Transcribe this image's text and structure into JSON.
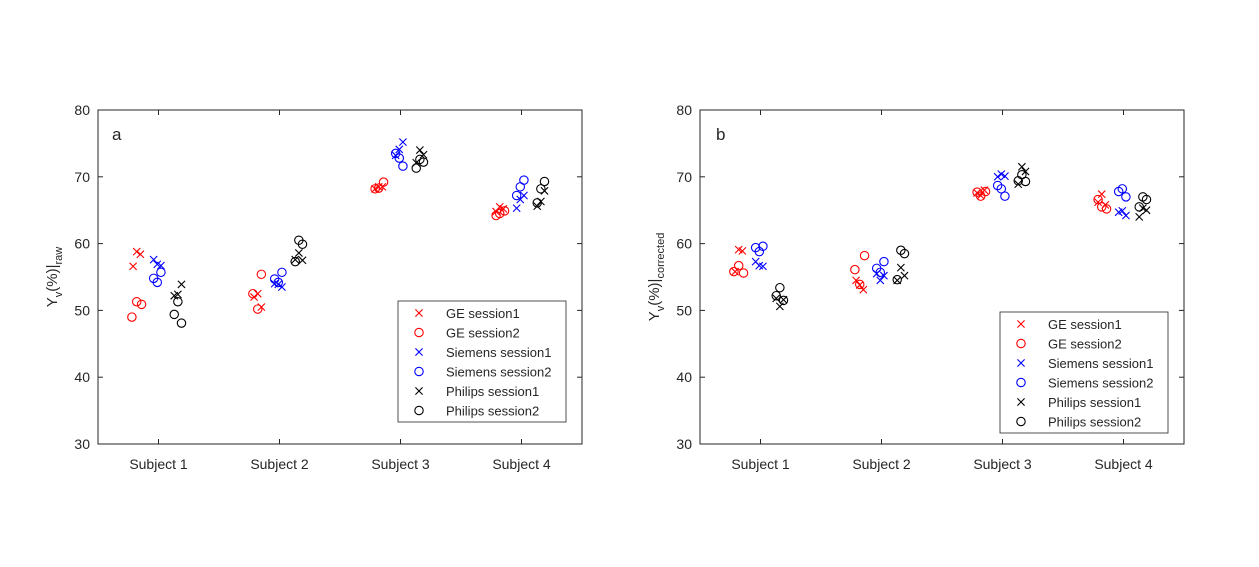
{
  "series_styles": [
    {
      "name": "GE session1",
      "marker": "x",
      "color": "#ff0000"
    },
    {
      "name": "GE session2",
      "marker": "o",
      "color": "#ff0000"
    },
    {
      "name": "Siemens session1",
      "marker": "x",
      "color": "#0000ff"
    },
    {
      "name": "Siemens session2",
      "marker": "o",
      "color": "#0000ff"
    },
    {
      "name": "Philips session1",
      "marker": "x",
      "color": "#000000"
    },
    {
      "name": "Philips session2",
      "marker": "o",
      "color": "#000000"
    }
  ],
  "chart_data": [
    {
      "type": "scatter",
      "panel_label": "a",
      "ylabel_main": "Y",
      "ylabel_sub": "v",
      "ylabel_rest": "(%)|",
      "ylabel_subscript2": "raw",
      "categories": [
        "Subject 1",
        "Subject 2",
        "Subject 3",
        "Subject 4"
      ],
      "ylim": [
        30,
        80
      ],
      "yticks": [
        30,
        40,
        50,
        60,
        70,
        80
      ],
      "legend_position": "bottom-right",
      "grid": false,
      "series": [
        {
          "name": "GE session1",
          "points": [
            [
              0.79,
              56.6
            ],
            [
              0.82,
              58.8
            ],
            [
              0.85,
              58.4
            ],
            [
              1.79,
              52.0
            ],
            [
              1.82,
              52.5
            ],
            [
              1.85,
              50.5
            ],
            [
              2.79,
              68.2
            ],
            [
              2.82,
              68.5
            ],
            [
              2.85,
              68.5
            ],
            [
              3.79,
              64.8
            ],
            [
              3.82,
              65.5
            ],
            [
              3.85,
              65.2
            ]
          ]
        },
        {
          "name": "GE session2",
          "points": [
            [
              0.78,
              49.0
            ],
            [
              0.82,
              51.3
            ],
            [
              0.86,
              50.9
            ],
            [
              1.82,
              50.2
            ],
            [
              1.85,
              55.4
            ],
            [
              1.78,
              52.5
            ],
            [
              2.79,
              68.2
            ],
            [
              2.82,
              68.3
            ],
            [
              2.86,
              69.2
            ],
            [
              3.79,
              64.2
            ],
            [
              3.82,
              64.5
            ],
            [
              3.86,
              64.9
            ]
          ]
        },
        {
          "name": "Siemens session1",
          "points": [
            [
              0.96,
              57.6
            ],
            [
              0.99,
              56.9
            ],
            [
              1.02,
              56.7
            ],
            [
              1.96,
              54.0
            ],
            [
              1.99,
              53.9
            ],
            [
              2.02,
              53.5
            ],
            [
              2.96,
              73.2
            ],
            [
              2.99,
              74.1
            ],
            [
              3.02,
              75.2
            ],
            [
              3.96,
              65.3
            ],
            [
              3.99,
              66.6
            ],
            [
              4.02,
              67.2
            ]
          ]
        },
        {
          "name": "Siemens session2",
          "points": [
            [
              0.96,
              54.8
            ],
            [
              0.99,
              54.2
            ],
            [
              1.02,
              55.7
            ],
            [
              1.96,
              54.7
            ],
            [
              1.99,
              54.2
            ],
            [
              2.02,
              55.7
            ],
            [
              2.96,
              73.5
            ],
            [
              2.99,
              72.8
            ],
            [
              3.02,
              71.6
            ],
            [
              3.96,
              67.2
            ],
            [
              3.99,
              68.5
            ],
            [
              4.02,
              69.5
            ]
          ]
        },
        {
          "name": "Philips session1",
          "points": [
            [
              1.13,
              52.2
            ],
            [
              1.16,
              52.4
            ],
            [
              1.19,
              53.9
            ],
            [
              2.13,
              57.6
            ],
            [
              2.16,
              58.6
            ],
            [
              2.19,
              57.5
            ],
            [
              3.13,
              72.1
            ],
            [
              3.16,
              74.0
            ],
            [
              3.19,
              73.3
            ],
            [
              4.13,
              65.6
            ],
            [
              4.16,
              66.3
            ],
            [
              4.19,
              67.9
            ]
          ]
        },
        {
          "name": "Philips session2",
          "points": [
            [
              1.13,
              49.4
            ],
            [
              1.16,
              51.3
            ],
            [
              1.19,
              48.1
            ],
            [
              2.13,
              57.3
            ],
            [
              2.16,
              60.5
            ],
            [
              2.19,
              59.9
            ],
            [
              3.13,
              71.3
            ],
            [
              3.16,
              72.6
            ],
            [
              3.19,
              72.2
            ],
            [
              4.13,
              66.1
            ],
            [
              4.16,
              68.2
            ],
            [
              4.19,
              69.3
            ]
          ]
        }
      ]
    },
    {
      "type": "scatter",
      "panel_label": "b",
      "ylabel_main": "Y",
      "ylabel_sub": "v",
      "ylabel_rest": "(%)|",
      "ylabel_subscript2": "corrected",
      "categories": [
        "Subject 1",
        "Subject 2",
        "Subject 3",
        "Subject 4"
      ],
      "ylim": [
        30,
        80
      ],
      "yticks": [
        30,
        40,
        50,
        60,
        70,
        80
      ],
      "legend_position": "bottom-right",
      "grid": false,
      "series": [
        {
          "name": "GE session1",
          "points": [
            [
              0.79,
              55.8
            ],
            [
              0.82,
              59.1
            ],
            [
              0.85,
              58.9
            ],
            [
              1.79,
              54.5
            ],
            [
              1.82,
              53.8
            ],
            [
              1.85,
              53.1
            ],
            [
              2.79,
              67.6
            ],
            [
              2.82,
              67.2
            ],
            [
              2.85,
              68.0
            ],
            [
              3.79,
              66.2
            ],
            [
              3.82,
              67.4
            ],
            [
              3.85,
              65.8
            ]
          ]
        },
        {
          "name": "GE session2",
          "points": [
            [
              0.78,
              55.8
            ],
            [
              0.82,
              56.7
            ],
            [
              0.86,
              55.6
            ],
            [
              1.78,
              56.1
            ],
            [
              1.82,
              53.9
            ],
            [
              1.86,
              58.2
            ],
            [
              2.79,
              67.7
            ],
            [
              2.82,
              67.1
            ],
            [
              2.86,
              67.8
            ],
            [
              3.79,
              66.6
            ],
            [
              3.82,
              65.5
            ],
            [
              3.86,
              65.2
            ]
          ]
        },
        {
          "name": "Siemens session1",
          "points": [
            [
              0.96,
              57.3
            ],
            [
              0.99,
              56.7
            ],
            [
              1.02,
              56.6
            ],
            [
              1.96,
              55.5
            ],
            [
              1.99,
              54.5
            ],
            [
              2.02,
              55.2
            ],
            [
              2.96,
              70.0
            ],
            [
              2.99,
              70.4
            ],
            [
              3.02,
              70.1
            ],
            [
              3.96,
              64.7
            ],
            [
              3.99,
              64.9
            ],
            [
              4.02,
              64.2
            ]
          ]
        },
        {
          "name": "Siemens session2",
          "points": [
            [
              0.96,
              59.4
            ],
            [
              0.99,
              58.8
            ],
            [
              1.02,
              59.6
            ],
            [
              1.96,
              56.3
            ],
            [
              1.99,
              55.7
            ],
            [
              2.02,
              57.3
            ],
            [
              2.96,
              68.7
            ],
            [
              2.99,
              68.2
            ],
            [
              3.02,
              67.1
            ],
            [
              3.96,
              67.8
            ],
            [
              3.99,
              68.2
            ],
            [
              4.02,
              67.0
            ]
          ]
        },
        {
          "name": "Philips session1",
          "points": [
            [
              1.13,
              51.8
            ],
            [
              1.16,
              50.6
            ],
            [
              1.19,
              51.6
            ],
            [
              2.13,
              54.5
            ],
            [
              2.16,
              56.4
            ],
            [
              2.19,
              55.2
            ],
            [
              3.13,
              68.9
            ],
            [
              3.16,
              71.5
            ],
            [
              3.19,
              70.8
            ],
            [
              4.13,
              64.0
            ],
            [
              4.16,
              65.3
            ],
            [
              4.19,
              65.0
            ]
          ]
        },
        {
          "name": "Philips session2",
          "points": [
            [
              1.13,
              52.2
            ],
            [
              1.16,
              53.4
            ],
            [
              1.19,
              51.5
            ],
            [
              2.13,
              54.6
            ],
            [
              2.16,
              59.0
            ],
            [
              2.19,
              58.5
            ],
            [
              3.13,
              69.4
            ],
            [
              3.16,
              70.3
            ],
            [
              3.19,
              69.3
            ],
            [
              4.13,
              65.5
            ],
            [
              4.16,
              67.0
            ],
            [
              4.19,
              66.6
            ]
          ]
        }
      ]
    }
  ]
}
